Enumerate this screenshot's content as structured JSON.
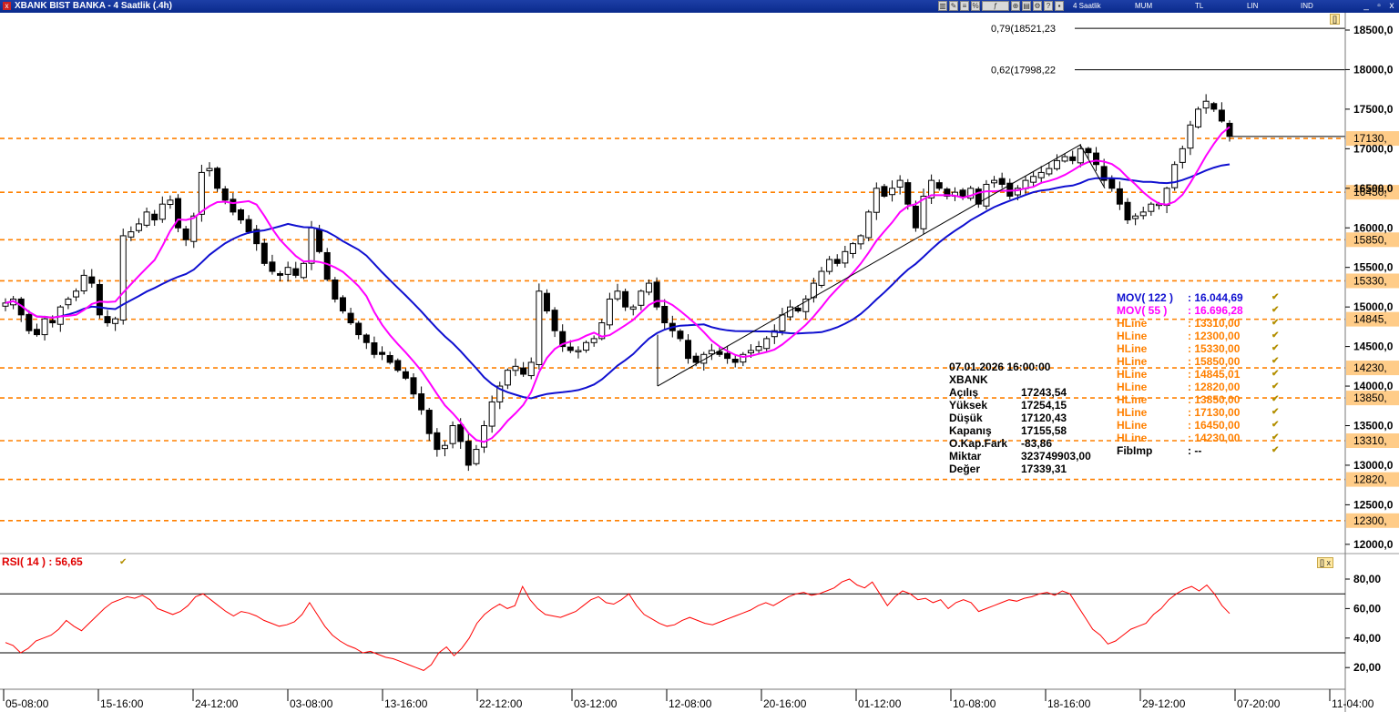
{
  "window": {
    "title": "XBANK BIST BANKA - 4 Saatlik (.4h)",
    "toolbar": [
      "4 Saatlik",
      "MUM",
      "TL",
      "LIN",
      "IND"
    ],
    "controls": [
      "_",
      "▫",
      "x"
    ]
  },
  "colors": {
    "mov122": "#1010d0",
    "mov55": "#ff00ff",
    "hline": "#ff8000",
    "rsi": "#ff0000",
    "price_label_bg": "#ffcc88"
  },
  "price_axis": {
    "ticks": [
      "18500,0",
      "18000,0",
      "17500,0",
      "17000,0",
      "16500,0",
      "16000,0",
      "15500,0",
      "15000,0",
      "14500,0",
      "14000,0",
      "13500,0",
      "13000,0",
      "12500,0",
      "12000,0"
    ]
  },
  "hline_labels": [
    "17130,",
    "16450,",
    "15850,",
    "15330,",
    "14845,",
    "14230,",
    "13850,",
    "13310,",
    "12820,",
    "12300,"
  ],
  "fib": [
    {
      "label": "0,79(18521,23",
      "value": 18521.23
    },
    {
      "label": "0,62(17998,22",
      "value": 17998.22
    }
  ],
  "time_axis": [
    "05-08:00",
    "15-16:00",
    "24-12:00",
    "03-08:00",
    "13-16:00",
    "22-12:00",
    "03-12:00",
    "12-08:00",
    "20-16:00",
    "01-12:00",
    "10-08:00",
    "18-16:00",
    "29-12:00",
    "07-20:00",
    "11-04:00"
  ],
  "ohlc_box": {
    "datetime": "07.01.2026  16:00:00",
    "symbol": "XBANK",
    "rows": [
      {
        "label": "Açılış",
        "value": "17243,54"
      },
      {
        "label": "Yüksek",
        "value": "17254,15"
      },
      {
        "label": "Düşük",
        "value": "17120,43"
      },
      {
        "label": "Kapanış",
        "value": "17155,58"
      },
      {
        "label": "O.Kap.Fark",
        "value": "-83,86"
      },
      {
        "label": "Miktar",
        "value": "323749903,00"
      },
      {
        "label": "Değer",
        "value": "17339,31"
      }
    ]
  },
  "legend": [
    {
      "name": "MOV( 122 )",
      "value": ": 16.044,69",
      "color": "#1010d0"
    },
    {
      "name": "MOV( 55 )",
      "value": ": 16.696,28",
      "color": "#ff00ff"
    },
    {
      "name": "HLine",
      "value": ": 13310,00",
      "color": "#ff8000"
    },
    {
      "name": "HLine",
      "value": ": 12300,00",
      "color": "#ff8000"
    },
    {
      "name": "HLine",
      "value": ": 15330,00",
      "color": "#ff8000"
    },
    {
      "name": "HLine",
      "value": ": 15850,00",
      "color": "#ff8000"
    },
    {
      "name": "HLine",
      "value": ": 14845,01",
      "color": "#ff8000"
    },
    {
      "name": "HLine",
      "value": ": 12820,00",
      "color": "#ff8000"
    },
    {
      "name": "HLine",
      "value": ": 13850,00",
      "color": "#ff8000"
    },
    {
      "name": "HLine",
      "value": ": 17130,00",
      "color": "#ff8000"
    },
    {
      "name": "HLine",
      "value": ": 16450,00",
      "color": "#ff8000"
    },
    {
      "name": "HLine",
      "value": ": 14230,00",
      "color": "#ff8000"
    },
    {
      "name": "FibImp",
      "value": ": --",
      "color": "#000000"
    }
  ],
  "rsi": {
    "label": "RSI( 14 )   : 56,65",
    "ticks": [
      "80,00",
      "60,00",
      "40,00",
      "20,00"
    ],
    "upper": 70,
    "lower": 30
  },
  "chart_data": [
    {
      "type": "candlestick",
      "title": "XBANK BIST BANKA - 4 Saatlik (.4h)",
      "ylim": [
        11800,
        18680
      ],
      "x_ticks": [
        "05-08:00",
        "15-16:00",
        "24-12:00",
        "03-08:00",
        "13-16:00",
        "22-12:00",
        "03-12:00",
        "12-08:00",
        "20-16:00",
        "01-12:00",
        "10-08:00",
        "18-16:00",
        "29-12:00",
        "07-20:00",
        "11-04:00"
      ],
      "close_path": [
        15050,
        15100,
        14900,
        14700,
        14650,
        14850,
        14800,
        15000,
        15100,
        15200,
        15400,
        15300,
        14900,
        14800,
        14850,
        15900,
        15950,
        16050,
        16200,
        16100,
        16300,
        16350,
        16000,
        15850,
        16150,
        16700,
        16750,
        16500,
        16350,
        16200,
        16100,
        15950,
        15800,
        15550,
        15450,
        15400,
        15500,
        15400,
        15550,
        16000,
        15700,
        15350,
        15100,
        14950,
        14800,
        14650,
        14550,
        14400,
        14400,
        14300,
        14200,
        14100,
        13900,
        13700,
        13400,
        13200,
        13250,
        13500,
        13300,
        13000,
        13200,
        13500,
        13800,
        14000,
        14200,
        14250,
        14150,
        14300,
        15200,
        14950,
        14700,
        14500,
        14450,
        14450,
        14550,
        14600,
        14800,
        15100,
        15200,
        15000,
        15000,
        15200,
        15300,
        15000,
        14800,
        14700,
        14600,
        14350,
        14300,
        14400,
        14450,
        14400,
        14350,
        14300,
        14400,
        14450,
        14500,
        14600,
        14700,
        14900,
        15000,
        14950,
        15100,
        15300,
        15450,
        15600,
        15550,
        15700,
        15800,
        15900,
        16200,
        16500,
        16400,
        16500,
        16600,
        16300,
        16000,
        16400,
        16600,
        16500,
        16400,
        16450,
        16400,
        16500,
        16300,
        16550,
        16600,
        16550,
        16400,
        16500,
        16600,
        16650,
        16700,
        16750,
        16850,
        16900,
        16850,
        17000,
        16950,
        16800,
        16600,
        16500,
        16300,
        16100,
        16150,
        16200,
        16300,
        16300,
        16500,
        16800,
        17000,
        17300,
        17500,
        17600,
        17500,
        17350,
        17155.58
      ],
      "series": [
        {
          "name": "MOV( 122 )",
          "last": 16044.69
        },
        {
          "name": "MOV( 55 )",
          "last": 16696.28
        }
      ],
      "hlines": [
        17130,
        16450,
        15850,
        15330,
        14845,
        14230,
        13850,
        13310,
        12820,
        12300
      ],
      "fib_levels": [
        18521.23,
        17998.22
      ],
      "last_bar": {
        "open": 17243.54,
        "high": 17254.15,
        "low": 17120.43,
        "close": 17155.58
      }
    },
    {
      "type": "line",
      "title": "RSI( 14 )",
      "ylim": [
        10,
        90
      ],
      "y_ticks": [
        80,
        60,
        40,
        20
      ],
      "guides": [
        70,
        30
      ],
      "last": 56.65,
      "values": [
        37,
        35,
        30,
        33,
        38,
        40,
        42,
        46,
        52,
        48,
        45,
        50,
        55,
        60,
        64,
        66,
        68,
        67,
        69,
        66,
        60,
        58,
        56,
        58,
        62,
        68,
        70,
        66,
        62,
        58,
        55,
        58,
        57,
        55,
        52,
        50,
        48,
        49,
        51,
        56,
        64,
        56,
        48,
        42,
        38,
        35,
        33,
        30,
        31,
        29,
        27,
        26,
        24,
        22,
        20,
        18,
        22,
        30,
        34,
        28,
        33,
        40,
        50,
        56,
        60,
        63,
        60,
        62,
        75,
        66,
        60,
        56,
        55,
        54,
        56,
        58,
        62,
        66,
        68,
        64,
        63,
        66,
        70,
        62,
        56,
        53,
        50,
        48,
        49,
        52,
        54,
        52,
        50,
        49,
        51,
        53,
        55,
        57,
        59,
        62,
        64,
        62,
        65,
        68,
        70,
        71,
        69,
        70,
        72,
        74,
        78,
        80,
        76,
        74,
        78,
        70,
        62,
        68,
        72,
        70,
        66,
        67,
        64,
        66,
        60,
        64,
        66,
        64,
        58,
        60,
        62,
        64,
        66,
        65,
        67,
        68,
        70,
        71,
        69,
        72,
        70,
        62,
        54,
        46,
        42,
        36,
        38,
        42,
        46,
        48,
        50,
        56,
        60,
        66,
        70,
        73,
        75,
        72,
        76,
        70,
        62,
        56.65
      ]
    }
  ]
}
